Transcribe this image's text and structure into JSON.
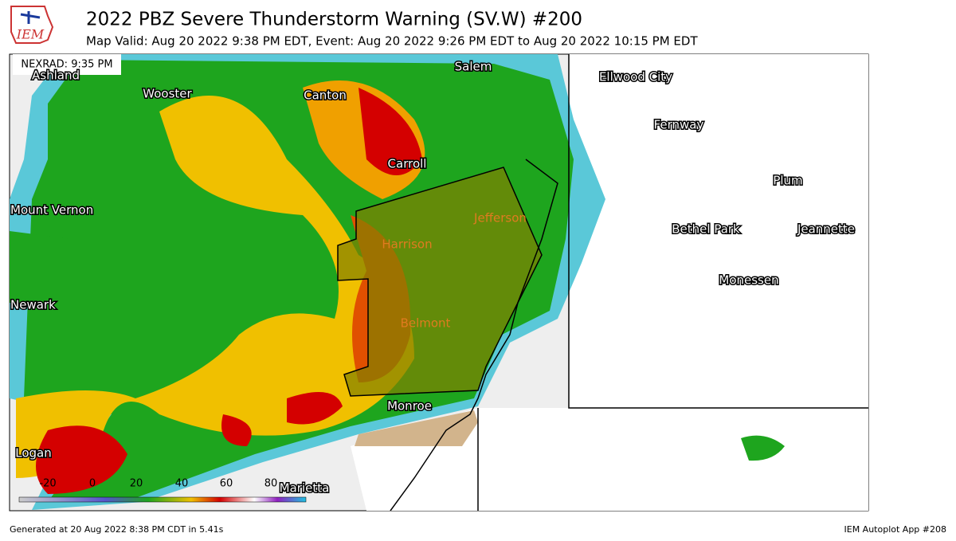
{
  "header": {
    "logo": "IEM",
    "title": "2022 PBZ Severe Thunderstorm Warning (SV.W) #200",
    "subtitle": "Map Valid: Aug 20 2022 9:38 PM EDT, Event: Aug 20 2022 9:26 PM EDT to Aug 20 2022 10:15 PM EDT"
  },
  "map": {
    "radar_time": "NEXRAD: 9:35 PM",
    "cities": [
      "Ashland",
      "Wooster",
      "Canton",
      "Salem",
      "Ellwood City",
      "Fernway",
      "Carroll",
      "Plum",
      "Mount Vernon",
      "Bethel Park",
      "Jeannette",
      "Monessen",
      "Newark",
      "Monroe",
      "Logan",
      "Marietta"
    ],
    "warning_counties": [
      "Jefferson",
      "Harrison",
      "Belmont"
    ],
    "colorbar": [
      -20,
      0,
      20,
      40,
      60,
      80
    ]
  },
  "footer": {
    "left": "Generated at 20 Aug 2022 8:38 PM CDT in 5.41s",
    "right": "IEM Autoplot App #208"
  }
}
